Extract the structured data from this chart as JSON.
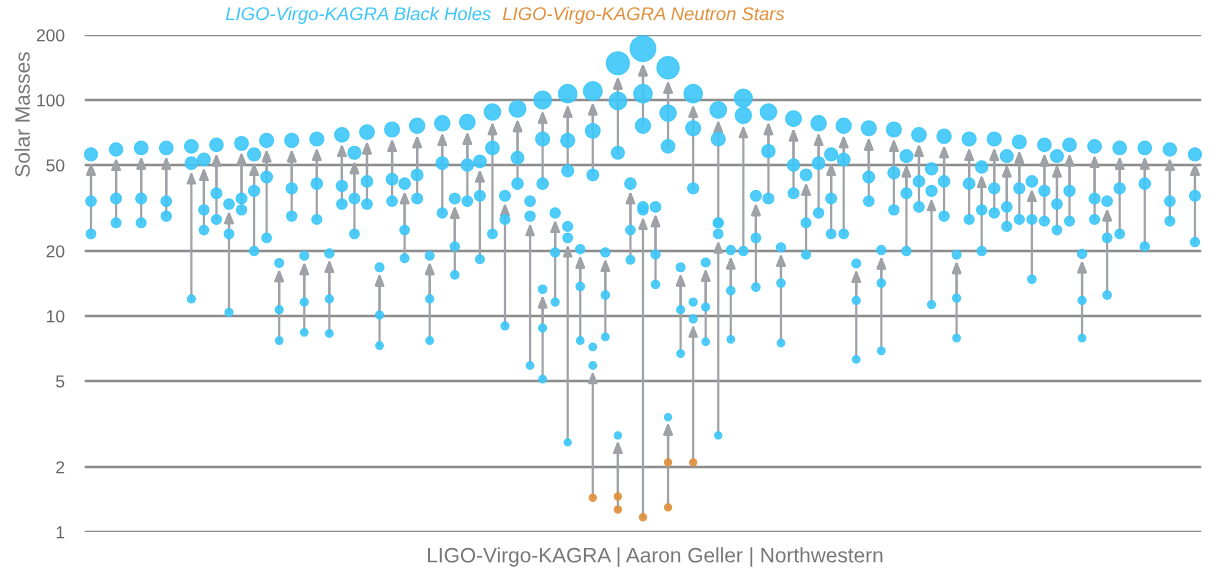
{
  "chart_data": {
    "type": "bubble",
    "ylabel": "Solar Masses",
    "log": "y",
    "ylim": [
      1,
      200
    ],
    "yticks": [
      1,
      2,
      5,
      10,
      20,
      50,
      100,
      200
    ],
    "grid": "y",
    "legend": "top",
    "tick_labels": "y",
    "marker": "circle",
    "annotations": [
      "LIGO-Virgo-KAGRA | Aaron Geller | Northwestern"
    ],
    "categories": [
      null,
      null,
      null,
      null,
      null,
      null,
      null,
      null,
      null,
      null,
      null,
      null,
      null,
      null,
      null,
      null,
      null,
      null,
      null,
      null,
      null,
      null,
      null,
      null,
      null,
      null,
      null,
      null,
      null,
      null,
      null,
      null,
      null,
      null,
      null,
      null,
      null,
      null,
      null,
      null,
      null,
      null,
      null,
      null,
      null,
      null,
      null,
      null,
      null,
      null,
      null,
      null,
      null,
      null,
      null,
      null,
      null,
      null,
      null,
      null,
      null,
      null,
      null,
      null,
      null,
      null,
      null,
      null,
      null,
      null,
      null,
      null,
      null,
      null,
      null,
      null,
      null,
      null,
      null,
      null,
      null,
      null,
      null,
      null,
      null,
      null,
      null,
      null,
      null
    ],
    "series": [
      {
        "name": "LIGO-Virgo-KAGRA Black Holes",
        "color": "#3cc6f8",
        "values": [
          56,
          null,
          59,
          null,
          60,
          null,
          60,
          null,
          61,
          53,
          62,
          33,
          63,
          56,
          65,
          17.6,
          65,
          19,
          66,
          19.5,
          69,
          57,
          71,
          16.8,
          73,
          41,
          76,
          19,
          78,
          35,
          79,
          52,
          88,
          36,
          91,
          34,
          100,
          30,
          107,
          20.4,
          110,
          19.7,
          148,
          41,
          173,
          32,
          141,
          16.8,
          107,
          17.7,
          90,
          20.2,
          102,
          36,
          88,
          20.8,
          82,
          45,
          78,
          56,
          76,
          17.5,
          74,
          20.2,
          73,
          55,
          69,
          48,
          68,
          19.2,
          66,
          49,
          66,
          55,
          64,
          42,
          62,
          55,
          62,
          19.4,
          61,
          34,
          60,
          null,
          60,
          null,
          59,
          null,
          56
        ],
        "sizes": [
          0.26,
          null,
          0.27,
          null,
          0.28,
          null,
          0.28,
          null,
          0.28,
          0.25,
          0.28,
          0.17,
          0.29,
          0.26,
          0.3,
          0.12,
          0.3,
          0.12,
          0.3,
          0.13,
          0.32,
          0.26,
          0.33,
          0.12,
          0.34,
          0.2,
          0.35,
          0.12,
          0.36,
          0.18,
          0.37,
          0.24,
          0.41,
          0.18,
          0.43,
          0.17,
          0.48,
          0.16,
          0.52,
          0.13,
          0.54,
          0.13,
          0.8,
          0.2,
          1,
          0.17,
          0.75,
          0.12,
          0.52,
          0.12,
          0.42,
          0.13,
          0.49,
          0.18,
          0.41,
          0.13,
          0.38,
          0.21,
          0.36,
          0.26,
          0.35,
          0.12,
          0.34,
          0.13,
          0.34,
          0.25,
          0.32,
          0.23,
          0.31,
          0.12,
          0.3,
          0.23,
          0.3,
          0.25,
          0.29,
          0.2,
          0.28,
          0.25,
          0.28,
          0.13,
          0.28,
          0.17,
          0.28,
          null,
          0.28,
          null,
          0.27,
          null,
          0.26
        ]
      },
      {
        "color": "#3cc6f8",
        "values": [
          34,
          null,
          35,
          null,
          35,
          null,
          34,
          null,
          51,
          31,
          37,
          24,
          35,
          38,
          44,
          10.7,
          39,
          11.6,
          41,
          12,
          40,
          35,
          42,
          10.1,
          43,
          25,
          45,
          12,
          51,
          21,
          50,
          36,
          60,
          28,
          54,
          29,
          66,
          19.7,
          65,
          13.7,
          72,
          12.5,
          99,
          25,
          107,
          19.3,
          87,
          10.7,
          74,
          11,
          66,
          13.1,
          85,
          23,
          58,
          14.2,
          50,
          27,
          51,
          35,
          53,
          11.8,
          44,
          14.2,
          46,
          37,
          42,
          38,
          42,
          12.1,
          41,
          31,
          39,
          32,
          39,
          28,
          38,
          33,
          38,
          11.8,
          35,
          23,
          39,
          null,
          41,
          null,
          34,
          null,
          36
        ],
        "sizes": [
          0.17,
          null,
          0.18,
          null,
          0.18,
          null,
          0.17,
          null,
          0.24,
          0.16,
          0.18,
          0.14,
          0.18,
          0.19,
          0.21,
          0.1,
          0.19,
          0.1,
          0.2,
          0.1,
          0.19,
          0.18,
          0.2,
          0.1,
          0.21,
          0.14,
          0.21,
          0.1,
          0.24,
          0.13,
          0.23,
          0.18,
          0.28,
          0.15,
          0.25,
          0.16,
          0.3,
          0.13,
          0.3,
          0.11,
          0.33,
          0.11,
          0.47,
          0.14,
          0.52,
          0.13,
          0.41,
          0.1,
          0.34,
          0.1,
          0.3,
          0.11,
          0.4,
          0.14,
          0.27,
          0.11,
          0.23,
          0.15,
          0.24,
          0.18,
          0.25,
          0.1,
          0.21,
          0.11,
          0.22,
          0.18,
          0.2,
          0.19,
          0.2,
          0.1,
          0.2,
          0.16,
          0.19,
          0.17,
          0.19,
          0.15,
          0.19,
          0.17,
          0.19,
          0.1,
          0.18,
          0.14,
          0.19,
          null,
          0.2,
          null,
          0.17,
          null,
          0.18
        ]
      },
      {
        "color": "#3cc6f8",
        "values": [
          24,
          null,
          27,
          null,
          27,
          null,
          29,
          null,
          12,
          25,
          28,
          10.4,
          31,
          20,
          23,
          7.7,
          29,
          8.4,
          28,
          8.3,
          33,
          24,
          33,
          7.3,
          34,
          18.5,
          35,
          7.7,
          30,
          15.5,
          34,
          18.3,
          24,
          9,
          41,
          5.9,
          41,
          11.6,
          47,
          7.7,
          45,
          8,
          57,
          18.2,
          76,
          14,
          61,
          6.7,
          39,
          7.6,
          27,
          7.8,
          20,
          13.6,
          35,
          7.5,
          37,
          19.2,
          30,
          24,
          24,
          6.3,
          34,
          6.9,
          31,
          20,
          32,
          11.3,
          29,
          7.9,
          28,
          20,
          30,
          26,
          28,
          14.8,
          27.5,
          25,
          27.5,
          7.9,
          28,
          12.5,
          24,
          null,
          21,
          null,
          27.5,
          null,
          22
        ],
        "sizes": [
          0.14,
          null,
          0.15,
          null,
          0.15,
          null,
          0.16,
          null,
          0.1,
          0.14,
          0.15,
          0.1,
          0.16,
          0.13,
          0.14,
          0.09,
          0.16,
          0.09,
          0.15,
          0.09,
          0.17,
          0.14,
          0.17,
          0.09,
          0.17,
          0.12,
          0.18,
          0.09,
          0.16,
          0.11,
          0.17,
          0.12,
          0.14,
          0.1,
          0.2,
          0.09,
          0.2,
          0.1,
          0.22,
          0.09,
          0.21,
          0.09,
          0.26,
          0.12,
          0.35,
          0.11,
          0.28,
          0.09,
          0.19,
          0.09,
          0.15,
          0.09,
          0.13,
          0.11,
          0.18,
          0.09,
          0.18,
          0.12,
          0.16,
          0.14,
          0.14,
          0.09,
          0.17,
          0.09,
          0.16,
          0.13,
          0.17,
          0.1,
          0.16,
          0.09,
          0.15,
          0.13,
          0.16,
          0.15,
          0.15,
          0.11,
          0.15,
          0.14,
          0.15,
          0.09,
          0.15,
          0.11,
          0.14,
          null,
          0.13,
          null,
          0.15,
          null,
          0.13
        ]
      },
      {
        "color": "#3cc6f8",
        "values": [
          null,
          null,
          null,
          null,
          null,
          null,
          null,
          null,
          null,
          null,
          null,
          null,
          null,
          null,
          null,
          null,
          null,
          null,
          null,
          null,
          null,
          null,
          null,
          null,
          null,
          null,
          null,
          null,
          null,
          null,
          null,
          null,
          null,
          null,
          null,
          null,
          13.3,
          null,
          26,
          null,
          7.2,
          null,
          2.8,
          null,
          32,
          null,
          3.4,
          null,
          11.6,
          null,
          27,
          null,
          null,
          null,
          null,
          null,
          null,
          null,
          null,
          null,
          null,
          null,
          null,
          null,
          null,
          null,
          null,
          null,
          null,
          null,
          null,
          null,
          null,
          null,
          null,
          null,
          null,
          null,
          null,
          null,
          null,
          null,
          null,
          null,
          null,
          null,
          null,
          null,
          null
        ],
        "sizes": [
          null,
          null,
          null,
          null,
          null,
          null,
          null,
          null,
          null,
          null,
          null,
          null,
          null,
          null,
          null,
          null,
          null,
          null,
          null,
          null,
          null,
          null,
          null,
          null,
          null,
          null,
          null,
          null,
          null,
          null,
          null,
          null,
          null,
          null,
          null,
          null,
          0.11,
          null,
          0.15,
          null,
          0.09,
          null,
          0.08,
          null,
          0.17,
          null,
          0.08,
          null,
          0.1,
          null,
          0.15,
          null,
          null,
          null,
          null,
          null,
          null,
          null,
          null,
          null,
          null,
          null,
          null,
          null,
          null,
          null,
          null,
          null,
          null,
          null,
          null,
          null,
          null,
          null,
          null,
          null,
          null,
          null,
          null,
          null,
          null,
          null,
          null,
          null,
          null,
          null,
          null,
          null,
          null
        ]
      },
      {
        "color": "#3cc6f8",
        "values": [
          null,
          null,
          null,
          null,
          null,
          null,
          null,
          null,
          null,
          null,
          null,
          null,
          null,
          null,
          null,
          null,
          null,
          null,
          null,
          null,
          null,
          null,
          null,
          null,
          null,
          null,
          null,
          null,
          null,
          null,
          null,
          null,
          null,
          null,
          null,
          null,
          8.8,
          null,
          23,
          null,
          5.9,
          null,
          null,
          null,
          31,
          null,
          null,
          null,
          9.7,
          null,
          24,
          null,
          null,
          null,
          null,
          null,
          null,
          null,
          null,
          null,
          null,
          null,
          null,
          null,
          null,
          null,
          null,
          null,
          null,
          null,
          null,
          null,
          null,
          null,
          null,
          null,
          null,
          null,
          null,
          null,
          null,
          null,
          null,
          null,
          null,
          null,
          null,
          null,
          null
        ],
        "sizes": [
          null,
          null,
          null,
          null,
          null,
          null,
          null,
          null,
          null,
          null,
          null,
          null,
          null,
          null,
          null,
          null,
          null,
          null,
          null,
          null,
          null,
          null,
          null,
          null,
          null,
          null,
          null,
          null,
          null,
          null,
          null,
          null,
          null,
          null,
          null,
          null,
          0.1,
          null,
          0.14,
          null,
          0.09,
          null,
          null,
          null,
          0.16,
          null,
          null,
          null,
          0.1,
          null,
          0.14,
          null,
          null,
          null,
          null,
          null,
          null,
          null,
          null,
          null,
          null,
          null,
          null,
          null,
          null,
          null,
          null,
          null,
          null,
          null,
          null,
          null,
          null,
          null,
          null,
          null,
          null,
          null,
          null,
          null,
          null,
          null,
          null,
          null,
          null,
          null,
          null,
          null,
          null
        ]
      },
      {
        "color": "#3cc6f8",
        "values": [
          null,
          null,
          null,
          null,
          null,
          null,
          null,
          null,
          null,
          null,
          null,
          null,
          null,
          null,
          null,
          null,
          null,
          null,
          null,
          null,
          null,
          null,
          null,
          null,
          null,
          null,
          null,
          null,
          null,
          null,
          null,
          null,
          null,
          null,
          null,
          null,
          5.1,
          null,
          2.6,
          null,
          null,
          null,
          null,
          null,
          null,
          null,
          null,
          null,
          null,
          null,
          2.8,
          null,
          null,
          null,
          null,
          null,
          null,
          null,
          null,
          null,
          null,
          null,
          null,
          null,
          null,
          null,
          null,
          null,
          null,
          null,
          null,
          null,
          null,
          null,
          null,
          null,
          null,
          null,
          null,
          null,
          null,
          null,
          null,
          null,
          null,
          null,
          null,
          null,
          null
        ],
        "sizes": [
          null,
          null,
          null,
          null,
          null,
          null,
          null,
          null,
          null,
          null,
          null,
          null,
          null,
          null,
          null,
          null,
          null,
          null,
          null,
          null,
          null,
          null,
          null,
          null,
          null,
          null,
          null,
          null,
          null,
          null,
          null,
          null,
          null,
          null,
          null,
          null,
          0.09,
          null,
          0.08,
          null,
          null,
          null,
          null,
          null,
          null,
          null,
          null,
          null,
          null,
          null,
          0.08,
          null,
          null,
          null,
          null,
          null,
          null,
          null,
          null,
          null,
          null,
          null,
          null,
          null,
          null,
          null,
          null,
          null,
          null,
          null,
          null,
          null,
          null,
          null,
          null,
          null,
          null,
          null,
          null,
          null,
          null,
          null,
          null,
          null,
          null,
          null,
          null,
          null,
          null
        ]
      },
      {
        "name": "LIGO-Virgo-KAGRA Neutron Stars",
        "color": "#e08f3a",
        "values": [
          null,
          null,
          null,
          null,
          null,
          null,
          null,
          null,
          null,
          null,
          null,
          null,
          null,
          null,
          null,
          null,
          null,
          null,
          null,
          null,
          null,
          null,
          null,
          null,
          null,
          null,
          null,
          null,
          null,
          null,
          null,
          null,
          null,
          null,
          null,
          null,
          null,
          null,
          null,
          null,
          1.44,
          null,
          1.27,
          null,
          1.17,
          null,
          1.3,
          null,
          2.1,
          null,
          null,
          null,
          null,
          null,
          null,
          null,
          null,
          null,
          null,
          null,
          null,
          null,
          null,
          null,
          null,
          null,
          null,
          null,
          null,
          null,
          null,
          null,
          null,
          null,
          null,
          null,
          null,
          null,
          null,
          null,
          null,
          null,
          null,
          null,
          null,
          null,
          null,
          null,
          null
        ],
        "sizes": [
          null,
          null,
          null,
          null,
          null,
          null,
          null,
          null,
          null,
          null,
          null,
          null,
          null,
          null,
          null,
          null,
          null,
          null,
          null,
          null,
          null,
          null,
          null,
          null,
          null,
          null,
          null,
          null,
          null,
          null,
          null,
          null,
          null,
          null,
          null,
          null,
          null,
          null,
          null,
          null,
          0.08,
          null,
          0.08,
          null,
          0.08,
          null,
          0.08,
          null,
          0.08,
          null,
          null,
          null,
          null,
          null,
          null,
          null,
          null,
          null,
          null,
          null,
          null,
          null,
          null,
          null,
          null,
          null,
          null,
          null,
          null,
          null,
          null,
          null,
          null,
          null,
          null,
          null,
          null,
          null,
          null,
          null,
          null,
          null,
          null,
          null,
          null,
          null,
          null,
          null,
          null
        ]
      },
      {
        "color": "#e08f3a",
        "values": [
          null,
          null,
          null,
          null,
          null,
          null,
          null,
          null,
          null,
          null,
          null,
          null,
          null,
          null,
          null,
          null,
          null,
          null,
          null,
          null,
          null,
          null,
          null,
          null,
          null,
          null,
          null,
          null,
          null,
          null,
          null,
          null,
          null,
          null,
          null,
          null,
          null,
          null,
          null,
          null,
          null,
          null,
          1.46,
          null,
          null,
          null,
          2.1,
          null,
          null,
          null,
          null,
          null,
          null,
          null,
          null,
          null,
          null,
          null,
          null,
          null,
          null,
          null,
          null,
          null,
          null,
          null,
          null,
          null,
          null,
          null,
          null,
          null,
          null,
          null,
          null,
          null,
          null,
          null,
          null,
          null,
          null,
          null,
          null,
          null,
          null,
          null,
          null,
          null,
          null
        ],
        "sizes": [
          null,
          null,
          null,
          null,
          null,
          null,
          null,
          null,
          null,
          null,
          null,
          null,
          null,
          null,
          null,
          null,
          null,
          null,
          null,
          null,
          null,
          null,
          null,
          null,
          null,
          null,
          null,
          null,
          null,
          null,
          null,
          null,
          null,
          null,
          null,
          null,
          null,
          null,
          null,
          null,
          null,
          null,
          0.08,
          null,
          null,
          null,
          0.08,
          null,
          null,
          null,
          null,
          null,
          null,
          null,
          null,
          null,
          null,
          null,
          null,
          null,
          null,
          null,
          null,
          null,
          null,
          null,
          null,
          null,
          null,
          null,
          null,
          null,
          null,
          null,
          null,
          null,
          null,
          null,
          null,
          null,
          null,
          null,
          null,
          null,
          null,
          null,
          null,
          null,
          null
        ]
      }
    ]
  }
}
